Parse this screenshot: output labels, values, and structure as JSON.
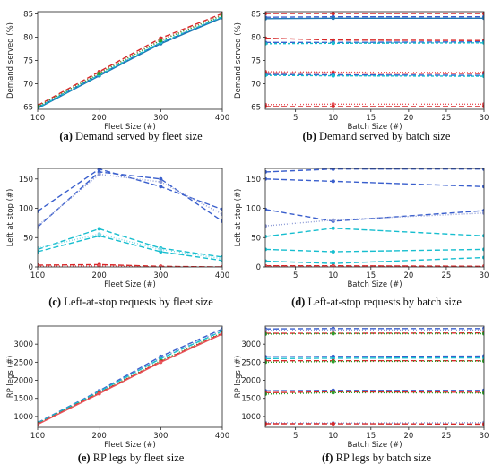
{
  "chart_data": [
    {
      "type": "line",
      "caption_tag": "(a)",
      "caption_text": " Demand served by fleet size",
      "xlabel": "Fleet Size (#)",
      "ylabel": "Demand served (%)",
      "xlim": [
        100,
        400
      ],
      "ylim": [
        64.5,
        85.5
      ],
      "xticks": [
        100,
        200,
        300,
        400
      ],
      "yticks": [
        65,
        70,
        75,
        80,
        85
      ],
      "x": [
        100,
        200,
        300,
        400
      ],
      "series": [
        {
          "color": "#d62728",
          "dash": "6,3",
          "values": [
            65.3,
            72.6,
            79.8,
            85.1
          ]
        },
        {
          "color": "#e8545a",
          "dash": "1,2",
          "values": [
            65.0,
            72.3,
            79.4,
            84.8
          ]
        },
        {
          "color": "#3a5fcd",
          "dash": "6,3",
          "values": [
            64.9,
            71.9,
            78.8,
            84.3
          ]
        },
        {
          "color": "#1f77b4",
          "dash": "",
          "values": [
            64.7,
            71.7,
            78.6,
            84.2
          ]
        },
        {
          "color": "#17becf",
          "dash": "3,2",
          "values": [
            64.8,
            71.9,
            78.9,
            84.4
          ]
        },
        {
          "color": "#2ca02c",
          "dash": "1,2",
          "values": [
            65.1,
            72.2,
            79.3,
            84.7
          ]
        }
      ]
    },
    {
      "type": "line",
      "caption_tag": "(b)",
      "caption_text": " Demand served by batch size",
      "xlabel": "Batch Size (#)",
      "ylabel": "Demand served (%)",
      "xlim": [
        1,
        30
      ],
      "ylim": [
        64.5,
        85.5
      ],
      "xticks": [
        5,
        10,
        15,
        20,
        25,
        30
      ],
      "yticks": [
        65,
        70,
        75,
        80,
        85
      ],
      "x": [
        1,
        10,
        30
      ],
      "series": [
        {
          "color": "#d62728",
          "dash": "6,3",
          "values": [
            85.1,
            85.1,
            85.1
          ]
        },
        {
          "color": "#3a5fcd",
          "dash": "6,3",
          "values": [
            84.3,
            84.4,
            84.4
          ]
        },
        {
          "color": "#1f77b4",
          "dash": "",
          "values": [
            84.0,
            84.1,
            84.1
          ]
        },
        {
          "color": "#d62728",
          "dash": "6,3",
          "values": [
            79.8,
            79.4,
            79.3
          ]
        },
        {
          "color": "#3a5fcd",
          "dash": "6,3",
          "values": [
            78.9,
            78.9,
            79.0
          ]
        },
        {
          "color": "#17becf",
          "dash": "3,2",
          "values": [
            78.6,
            78.7,
            78.8
          ]
        },
        {
          "color": "#e8545a",
          "dash": "1,2",
          "values": [
            72.6,
            72.5,
            72.4
          ]
        },
        {
          "color": "#d62728",
          "dash": "6,3",
          "values": [
            72.3,
            72.3,
            72.2
          ]
        },
        {
          "color": "#3a5fcd",
          "dash": "6,3",
          "values": [
            72.0,
            71.9,
            71.8
          ]
        },
        {
          "color": "#17becf",
          "dash": "3,2",
          "values": [
            71.8,
            71.7,
            71.6
          ]
        },
        {
          "color": "#e8545a",
          "dash": "1,2",
          "values": [
            65.5,
            65.6,
            65.6
          ]
        },
        {
          "color": "#d62728",
          "dash": "6,3",
          "values": [
            65.1,
            65.1,
            65.1
          ]
        }
      ]
    },
    {
      "type": "line",
      "caption_tag": "(c)",
      "caption_text": " Left-at-stop requests by fleet size",
      "xlabel": "Fleet Size (#)",
      "ylabel": "Left at stop (#)",
      "xlim": [
        100,
        400
      ],
      "ylim": [
        0,
        168
      ],
      "xticks": [
        100,
        200,
        300,
        400
      ],
      "yticks": [
        0,
        50,
        100,
        150
      ],
      "x": [
        100,
        200,
        300,
        400
      ],
      "series": [
        {
          "color": "#3a5fcd",
          "dash": "6,3",
          "values": [
            95,
            167,
            137,
            98
          ]
        },
        {
          "color": "#3a5fcd",
          "dash": "6,3",
          "values": [
            68,
            162,
            150,
            78
          ]
        },
        {
          "color": "#8c9ad6",
          "dash": "1,2",
          "values": [
            70,
            158,
            145,
            90
          ]
        },
        {
          "color": "#17becf",
          "dash": "6,3",
          "values": [
            30,
            65,
            32,
            17
          ]
        },
        {
          "color": "#17becf",
          "dash": "6,3",
          "values": [
            26,
            53,
            26,
            11
          ]
        },
        {
          "color": "#7fd8e6",
          "dash": "1,2",
          "values": [
            32,
            56,
            30,
            14
          ]
        },
        {
          "color": "#d62728",
          "dash": "6,3",
          "values": [
            3,
            4,
            1,
            0
          ]
        },
        {
          "color": "#e8545a",
          "dash": "1,2",
          "values": [
            1,
            2,
            0,
            0
          ]
        }
      ]
    },
    {
      "type": "line",
      "caption_tag": "(d)",
      "caption_text": " Left-at-stop requests by batch size",
      "xlabel": "Batch Size (#)",
      "ylabel": "Left at stop (#)",
      "xlim": [
        1,
        30
      ],
      "ylim": [
        0,
        168
      ],
      "xticks": [
        5,
        10,
        15,
        20,
        25,
        30
      ],
      "yticks": [
        0,
        50,
        100,
        150
      ],
      "x": [
        1,
        10,
        30
      ],
      "series": [
        {
          "color": "#3a5fcd",
          "dash": "6,3",
          "values": [
            162,
            167,
            167
          ]
        },
        {
          "color": "#3a5fcd",
          "dash": "6,3",
          "values": [
            150,
            146,
            137
          ]
        },
        {
          "color": "#3a5fcd",
          "dash": "6,3",
          "values": [
            98,
            78,
            96
          ]
        },
        {
          "color": "#8c9ad6",
          "dash": "1,2",
          "values": [
            70,
            80,
            92
          ]
        },
        {
          "color": "#17becf",
          "dash": "6,3",
          "values": [
            52,
            66,
            53
          ]
        },
        {
          "color": "#17becf",
          "dash": "6,3",
          "values": [
            30,
            26,
            30
          ]
        },
        {
          "color": "#17becf",
          "dash": "6,3",
          "values": [
            10,
            6,
            16
          ]
        },
        {
          "color": "#d62728",
          "dash": "6,3",
          "values": [
            2,
            2,
            1
          ]
        },
        {
          "color": "#e8545a",
          "dash": "1,2",
          "values": [
            1,
            1,
            0
          ]
        }
      ]
    },
    {
      "type": "line",
      "caption_tag": "(e)",
      "caption_text": " RP legs by fleet size",
      "xlabel": "Fleet Size (#)",
      "ylabel": "RP legs (#)",
      "xlim": [
        100,
        400
      ],
      "ylim": [
        700,
        3500
      ],
      "xticks": [
        100,
        200,
        300,
        400
      ],
      "yticks": [
        1000,
        1500,
        2000,
        2500,
        3000
      ],
      "x": [
        100,
        200,
        300,
        400
      ],
      "series": [
        {
          "color": "#3a5fcd",
          "dash": "6,3",
          "values": [
            830,
            1710,
            2660,
            3420
          ]
        },
        {
          "color": "#8c9ad6",
          "dash": "1,2",
          "values": [
            810,
            1690,
            2620,
            3380
          ]
        },
        {
          "color": "#17becf",
          "dash": "6,3",
          "values": [
            820,
            1690,
            2600,
            3360
          ]
        },
        {
          "color": "#2ca02c",
          "dash": "1,2",
          "values": [
            800,
            1660,
            2540,
            3320
          ]
        },
        {
          "color": "#d62728",
          "dash": "6,3",
          "values": [
            790,
            1650,
            2520,
            3300
          ]
        },
        {
          "color": "#e8545a",
          "dash": "",
          "values": [
            780,
            1630,
            2500,
            3280
          ]
        }
      ]
    },
    {
      "type": "line",
      "caption_tag": "(f)",
      "caption_text": " RP legs by batch size",
      "xlabel": "Batch Size (#)",
      "ylabel": "RP legs (#)",
      "xlim": [
        1,
        30
      ],
      "ylim": [
        700,
        3500
      ],
      "xticks": [
        5,
        10,
        15,
        20,
        25,
        30
      ],
      "yticks": [
        1000,
        1500,
        2000,
        2500,
        3000
      ],
      "x": [
        1,
        10,
        30
      ],
      "series": [
        {
          "color": "#3a5fcd",
          "dash": "6,3",
          "values": [
            3420,
            3430,
            3430
          ]
        },
        {
          "color": "#8c9ad6",
          "dash": "1,2",
          "values": [
            3380,
            3390,
            3390
          ]
        },
        {
          "color": "#d62728",
          "dash": "6,3",
          "values": [
            3300,
            3300,
            3310
          ]
        },
        {
          "color": "#2ca02c",
          "dash": "1,2",
          "values": [
            3280,
            3290,
            3290
          ]
        },
        {
          "color": "#3a5fcd",
          "dash": "6,3",
          "values": [
            2650,
            2660,
            2670
          ]
        },
        {
          "color": "#17becf",
          "dash": "6,3",
          "values": [
            2600,
            2610,
            2620
          ]
        },
        {
          "color": "#d62728",
          "dash": "6,3",
          "values": [
            2540,
            2540,
            2540
          ]
        },
        {
          "color": "#2ca02c",
          "dash": "1,2",
          "values": [
            2500,
            2520,
            2530
          ]
        },
        {
          "color": "#3a5fcd",
          "dash": "6,3",
          "values": [
            1710,
            1720,
            1720
          ]
        },
        {
          "color": "#d62728",
          "dash": "6,3",
          "values": [
            1660,
            1680,
            1670
          ]
        },
        {
          "color": "#2ca02c",
          "dash": "1,2",
          "values": [
            1620,
            1660,
            1650
          ]
        },
        {
          "color": "#8c9ad6",
          "dash": "1,2",
          "values": [
            830,
            820,
            830
          ]
        },
        {
          "color": "#d62728",
          "dash": "6,3",
          "values": [
            800,
            800,
            790
          ]
        }
      ]
    }
  ]
}
